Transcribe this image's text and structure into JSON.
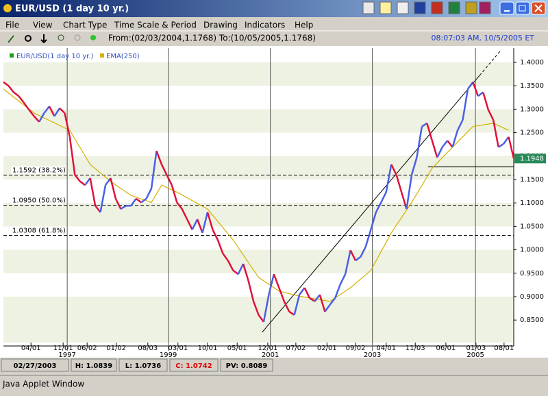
{
  "window": {
    "title": "EUR/USD (1 day 10 yr.)"
  },
  "menu": [
    "File",
    "View",
    "Chart Type",
    "Time Scale & Period",
    "Drawing",
    "Indicators",
    "Help"
  ],
  "toolbar": {
    "range": "From:(02/03/2004,1.1768) To:(10/05/2005,1.1768)",
    "clock": "08:07:03 AM, 10/5/2005 ET"
  },
  "chart_data": {
    "type": "line",
    "xlim": [
      0,
      100
    ],
    "ylim": [
      0.802,
      1.4307
    ],
    "yticks": [
      {
        "value": 1.4,
        "label": "1.4000"
      },
      {
        "value": 1.35,
        "label": "1.3500"
      },
      {
        "value": 1.3,
        "label": "1.3000"
      },
      {
        "value": 1.25,
        "label": "1.2500"
      },
      {
        "value": 1.2,
        "label": "1.2000"
      },
      {
        "value": 1.15,
        "label": "1.1500"
      },
      {
        "value": 1.1,
        "label": "1.1000"
      },
      {
        "value": 1.05,
        "label": "1.0500"
      },
      {
        "value": 1,
        "label": "1.0000"
      },
      {
        "value": 0.95,
        "label": "0.9500"
      },
      {
        "value": 0.9,
        "label": "0.9000"
      },
      {
        "value": 0.85,
        "label": "0.8500"
      }
    ],
    "xticks": [
      {
        "value": 5.4,
        "label": "04/01"
      },
      {
        "value": 11.7,
        "label": "11/01"
      },
      {
        "value": 16.4,
        "label": "06/02"
      },
      {
        "value": 22.1,
        "label": "01/02"
      },
      {
        "value": 28.3,
        "label": "08/03"
      },
      {
        "value": 34.2,
        "label": "03/01"
      },
      {
        "value": 40,
        "label": "10/01"
      },
      {
        "value": 45.8,
        "label": "05/01"
      },
      {
        "value": 51.8,
        "label": "12/01"
      },
      {
        "value": 57.3,
        "label": "07/02"
      },
      {
        "value": 63.4,
        "label": "02/01"
      },
      {
        "value": 69,
        "label": "09/02"
      },
      {
        "value": 75,
        "label": "04/01"
      },
      {
        "value": 80.7,
        "label": "11/03"
      },
      {
        "value": 86.7,
        "label": "06/01"
      },
      {
        "value": 92.6,
        "label": "01/03"
      },
      {
        "value": 98.1,
        "label": "08/01"
      }
    ],
    "year_lines": [
      {
        "value": 12.5,
        "label": "1997"
      },
      {
        "value": 32.3,
        "label": "1999"
      },
      {
        "value": 52.3,
        "label": "2001"
      },
      {
        "value": 72.3,
        "label": "2003"
      },
      {
        "value": 92.5,
        "label": "2005"
      }
    ],
    "series": [
      {
        "name": "EUR/USD(1 day  10 yr.)",
        "color": "#e0103a",
        "up_color": "#4a5ee8",
        "legend_color": "#1aa01a",
        "values": [
          1.358,
          1.35,
          1.336,
          1.328,
          1.314,
          1.299,
          1.285,
          1.273,
          1.292,
          1.306,
          1.285,
          1.302,
          1.292,
          1.241,
          1.16,
          1.146,
          1.138,
          1.153,
          1.094,
          1.08,
          1.138,
          1.153,
          1.109,
          1.087,
          1.094,
          1.094,
          1.109,
          1.101,
          1.109,
          1.131,
          1.211,
          1.182,
          1.16,
          1.138,
          1.101,
          1.087,
          1.065,
          1.043,
          1.065,
          1.036,
          1.08,
          1.043,
          1.021,
          0.992,
          0.977,
          0.956,
          0.948,
          0.97,
          0.934,
          0.89,
          0.861,
          0.846,
          0.904,
          0.948,
          0.919,
          0.89,
          0.868,
          0.861,
          0.904,
          0.919,
          0.897,
          0.89,
          0.904,
          0.868,
          0.883,
          0.897,
          0.926,
          0.948,
          0.999,
          0.977,
          0.985,
          1.007,
          1.043,
          1.08,
          1.101,
          1.123,
          1.182,
          1.16,
          1.123,
          1.087,
          1.16,
          1.197,
          1.263,
          1.27,
          1.233,
          1.197,
          1.219,
          1.233,
          1.219,
          1.255,
          1.277,
          1.343,
          1.358,
          1.328,
          1.336,
          1.299,
          1.277,
          1.219,
          1.226,
          1.241,
          1.1948
        ]
      },
      {
        "name": "EMA(250)",
        "color": "#d4b000",
        "x": [
          0,
          6,
          13,
          17,
          21,
          25,
          29,
          31,
          34,
          40,
          45,
          50,
          54,
          58,
          64,
          68,
          72,
          76,
          80,
          84,
          88,
          92,
          96,
          99
        ],
        "values": [
          1.343,
          1.292,
          1.255,
          1.182,
          1.146,
          1.116,
          1.101,
          1.138,
          1.123,
          1.087,
          1.021,
          0.941,
          0.912,
          0.901,
          0.89,
          0.919,
          0.956,
          1.036,
          1.101,
          1.174,
          1.219,
          1.263,
          1.27,
          1.255
        ]
      }
    ],
    "last_price": 1.1948,
    "fib_levels": [
      {
        "value": 1.1592,
        "label": "1.1592 (38.2%)"
      },
      {
        "value": 1.095,
        "label": "1.0950 (50.0%)"
      },
      {
        "value": 1.0308,
        "label": "1.0308 (61.8%)"
      }
    ],
    "trendline": {
      "x": [
        50.7,
        93.3
      ],
      "values": [
        0.824,
        1.372
      ]
    },
    "support": {
      "x": [
        83.2,
        100
      ],
      "value": 1.1768
    }
  },
  "status": {
    "date": "02/27/2003",
    "high": "H: 1.0839",
    "low": "L: 1.0736",
    "close": "C: 1.0742",
    "pv": "PV: 0.8089"
  },
  "footer": "Java Applet Window"
}
